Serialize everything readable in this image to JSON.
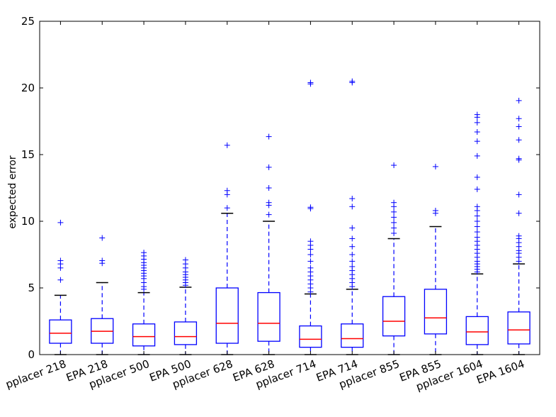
{
  "chart_data": {
    "type": "boxplot",
    "title": "",
    "xlabel": "",
    "ylabel": "expected error",
    "ylim": [
      0,
      25
    ],
    "yticks": [
      "0",
      "5",
      "10",
      "15",
      "20",
      "25"
    ],
    "grid": false,
    "legend": "none",
    "colors": {
      "box": "#0000ff",
      "median": "#ff0000",
      "whisker_cap": "#000000",
      "flier": "#0000ff",
      "axes": "#000000"
    },
    "categories": [
      "pplacer 218",
      "EPA 218",
      "pplacer 500",
      "EPA 500",
      "pplacer 628",
      "EPA 628",
      "pplacer 714",
      "EPA 714",
      "pplacer 855",
      "EPA 855",
      "pplacer 1604",
      "EPA 1604"
    ],
    "boxes": [
      {
        "min": 0.0,
        "q1": 0.85,
        "median": 1.6,
        "q3": 2.6,
        "max": 4.45,
        "fliers": [
          5.6,
          6.5,
          6.8,
          7.05,
          9.9
        ]
      },
      {
        "min": 0.0,
        "q1": 0.85,
        "median": 1.75,
        "q3": 2.7,
        "max": 5.4,
        "fliers": [
          6.85,
          7.05,
          8.75
        ]
      },
      {
        "min": 0.0,
        "q1": 0.65,
        "median": 1.35,
        "q3": 2.3,
        "max": 4.65,
        "fliers": [
          4.9,
          5.1,
          5.4,
          5.7,
          5.9,
          6.1,
          6.3,
          6.5,
          6.7,
          6.9,
          7.15,
          7.4,
          7.65
        ]
      },
      {
        "min": 0.0,
        "q1": 0.75,
        "median": 1.35,
        "q3": 2.45,
        "max": 5.05,
        "fliers": [
          5.2,
          5.4,
          5.6,
          5.8,
          6.0,
          6.2,
          6.5,
          6.8,
          7.1
        ]
      },
      {
        "min": 0.0,
        "q1": 0.85,
        "median": 2.35,
        "q3": 5.0,
        "max": 10.6,
        "fliers": [
          11.0,
          12.0,
          12.3,
          15.7
        ]
      },
      {
        "min": 0.0,
        "q1": 1.0,
        "median": 2.35,
        "q3": 4.65,
        "max": 10.0,
        "fliers": [
          10.5,
          11.2,
          11.4,
          12.5,
          14.05,
          16.35
        ]
      },
      {
        "min": 0.0,
        "q1": 0.55,
        "median": 1.15,
        "q3": 2.15,
        "max": 4.55,
        "fliers": [
          4.7,
          5.0,
          5.3,
          5.6,
          5.9,
          6.2,
          6.5,
          7.0,
          7.5,
          7.9,
          8.2,
          8.5,
          10.95,
          11.05,
          20.3,
          20.4
        ]
      },
      {
        "min": 0.0,
        "q1": 0.55,
        "median": 1.2,
        "q3": 2.3,
        "max": 4.9,
        "fliers": [
          5.1,
          5.4,
          5.7,
          6.0,
          6.3,
          6.6,
          7.0,
          7.5,
          8.1,
          8.7,
          9.5,
          11.1,
          11.7,
          20.4,
          20.5
        ]
      },
      {
        "min": 0.0,
        "q1": 1.4,
        "median": 2.5,
        "q3": 4.35,
        "max": 8.7,
        "fliers": [
          9.1,
          9.5,
          9.9,
          10.3,
          10.7,
          11.1,
          11.4,
          14.2
        ]
      },
      {
        "min": 0.0,
        "q1": 1.55,
        "median": 2.75,
        "q3": 4.9,
        "max": 9.6,
        "fliers": [
          10.6,
          10.8,
          14.1
        ]
      },
      {
        "min": 0.0,
        "q1": 0.75,
        "median": 1.7,
        "q3": 2.85,
        "max": 6.05,
        "fliers": [
          6.2,
          6.4,
          6.6,
          6.8,
          7.0,
          7.3,
          7.6,
          7.9,
          8.2,
          8.5,
          8.8,
          9.2,
          9.6,
          10.0,
          10.4,
          10.8,
          11.1,
          12.4,
          13.3,
          14.9,
          16.0,
          16.7,
          17.4,
          17.8,
          18.0
        ]
      },
      {
        "min": 0.0,
        "q1": 0.8,
        "median": 1.85,
        "q3": 3.2,
        "max": 6.8,
        "fliers": [
          7.0,
          7.3,
          7.6,
          7.8,
          8.1,
          8.4,
          8.7,
          8.9,
          10.6,
          12.0,
          14.6,
          14.7,
          16.1,
          17.1,
          17.7,
          19.05
        ]
      }
    ]
  }
}
